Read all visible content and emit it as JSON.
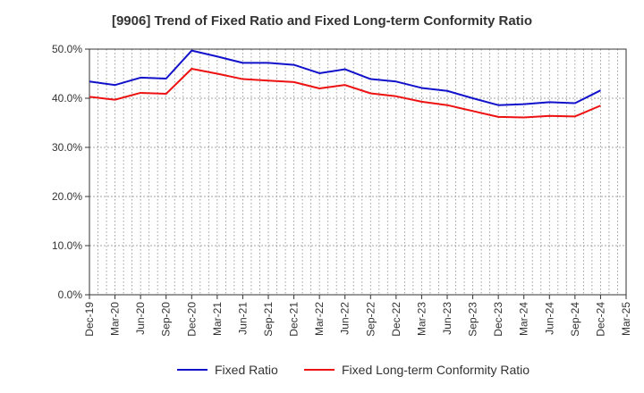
{
  "chart_data": {
    "type": "line",
    "title": "[9906]  Trend of Fixed Ratio and Fixed Long-term Conformity Ratio",
    "xlabel": "",
    "ylabel": "",
    "ylim": [
      0,
      50
    ],
    "y_ticks": [
      "0.0%",
      "10.0%",
      "20.0%",
      "30.0%",
      "40.0%",
      "50.0%"
    ],
    "y_tick_values": [
      0,
      10,
      20,
      30,
      40,
      50
    ],
    "grid": true,
    "legend_position": "bottom",
    "categories": [
      "Dec-19",
      "Mar-20",
      "Jun-20",
      "Sep-20",
      "Dec-20",
      "Mar-21",
      "Jun-21",
      "Sep-21",
      "Dec-21",
      "Mar-22",
      "Jun-22",
      "Sep-22",
      "Dec-22",
      "Mar-23",
      "Jun-23",
      "Sep-23",
      "Dec-23",
      "Mar-24",
      "Jun-24",
      "Sep-24",
      "Dec-24",
      "Mar-25"
    ],
    "series": [
      {
        "name": "Fixed Ratio",
        "color": "#1111cc",
        "values": [
          43.4,
          42.7,
          44.2,
          44.0,
          49.7,
          48.5,
          47.2,
          47.2,
          46.8,
          45.1,
          45.9,
          43.9,
          43.4,
          42.1,
          41.5,
          40.0,
          38.6,
          38.8,
          39.2,
          39.0,
          41.6,
          null
        ]
      },
      {
        "name": "Fixed Long-term Conformity Ratio",
        "color": "#ee1111",
        "values": [
          40.3,
          39.7,
          41.1,
          40.9,
          46.0,
          45.0,
          43.9,
          43.6,
          43.3,
          42.0,
          42.7,
          41.0,
          40.4,
          39.3,
          38.6,
          37.4,
          36.2,
          36.1,
          36.4,
          36.3,
          38.5,
          null
        ]
      }
    ]
  }
}
